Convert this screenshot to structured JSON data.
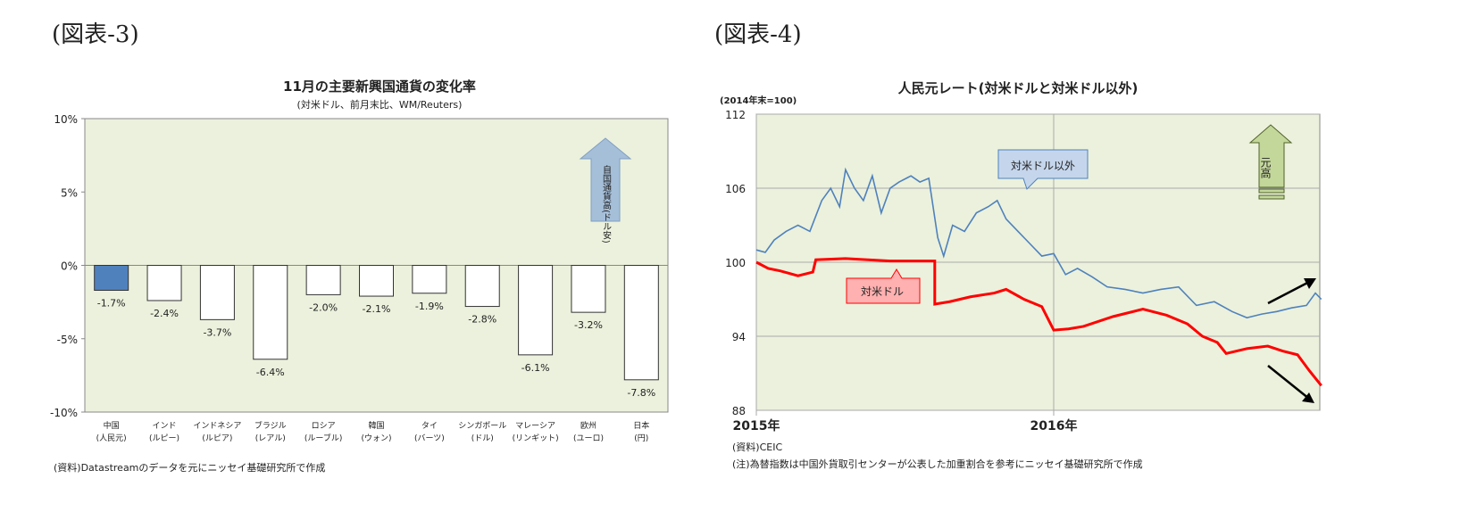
{
  "figure_labels": [
    "(図表-3)",
    "(図表-4)"
  ],
  "chart_data": [
    {
      "type": "bar",
      "title": "11月の主要新興国通貨の変化率",
      "subtitle": "(対米ドル、前月末比、WM/Reuters)",
      "categories": [
        [
          "中国",
          "(人民元)"
        ],
        [
          "インド",
          "(ルピー)"
        ],
        [
          "インドネシア",
          "(ルピア)"
        ],
        [
          "ブラジル",
          "(レアル)"
        ],
        [
          "ロシア",
          "(ルーブル)"
        ],
        [
          "韓国",
          "(ウォン)"
        ],
        [
          "タイ",
          "(バーツ)"
        ],
        [
          "シンガポール",
          "(ドル)"
        ],
        [
          "マレーシア",
          "(リンギット)"
        ],
        [
          "欧州",
          "(ユーロ)"
        ],
        [
          "日本",
          "(円)"
        ]
      ],
      "values": [
        -1.7,
        -2.4,
        -3.7,
        -6.4,
        -2.0,
        -2.1,
        -1.9,
        -2.8,
        -6.1,
        -3.2,
        -7.8
      ],
      "value_labels": [
        "-1.7%",
        "-2.4%",
        "-3.7%",
        "-6.4%",
        "-2.0%",
        "-2.1%",
        "-1.9%",
        "-2.8%",
        "-6.1%",
        "-3.2%",
        "-7.8%"
      ],
      "ylim": [
        -10,
        10
      ],
      "yticks": [
        10,
        5,
        0,
        -5,
        -10
      ],
      "ytick_labels": [
        "10%",
        "5%",
        "0%",
        "-5%",
        "-10%"
      ],
      "highlight_color": "#4f81bd",
      "bar_color": "#ffffff",
      "plot_bg": "#ebf1dc",
      "annotation": "自国通貨高(ドル安)",
      "source": "(資料)Datastreamのデータを元にニッセイ基礎研究所で作成"
    },
    {
      "type": "line",
      "title": "人民元レート(対米ドルと対米ドル以外)",
      "ylabel": "(2014年末=100)",
      "ylim": [
        88,
        112
      ],
      "yticks": [
        112,
        106,
        100,
        94,
        88
      ],
      "xlim": [
        2015.0,
        2016.9
      ],
      "xticks": [
        {
          "x": 2015.0,
          "label": "2015年"
        },
        {
          "x": 2016.0,
          "label": "2016年"
        }
      ],
      "annotation": "元高",
      "series": [
        {
          "name": "対米ドル以外",
          "color": "#4f81bd",
          "x": [
            2015.0,
            2015.03,
            2015.06,
            2015.1,
            2015.14,
            2015.18,
            2015.22,
            2015.25,
            2015.28,
            2015.3,
            2015.33,
            2015.36,
            2015.39,
            2015.42,
            2015.45,
            2015.48,
            2015.52,
            2015.55,
            2015.58,
            2015.61,
            2015.63,
            2015.66,
            2015.7,
            2015.74,
            2015.78,
            2015.81,
            2015.84,
            2015.88,
            2015.92,
            2015.96,
            2016.0,
            2016.04,
            2016.08,
            2016.13,
            2016.18,
            2016.24,
            2016.3,
            2016.36,
            2016.42,
            2016.48,
            2016.54,
            2016.6,
            2016.65,
            2016.7,
            2016.75,
            2016.8,
            2016.85,
            2016.88,
            2016.9
          ],
          "y": [
            101,
            100.8,
            101.8,
            102.5,
            103,
            102.5,
            105,
            106,
            104.5,
            107.5,
            106,
            105,
            107,
            104,
            106,
            106.5,
            107,
            106.5,
            106.8,
            102,
            100.5,
            103,
            102.5,
            104,
            104.5,
            105,
            103.5,
            102.5,
            101.5,
            100.5,
            100.7,
            99,
            99.5,
            98.8,
            98,
            97.8,
            97.5,
            97.8,
            98,
            96.5,
            96.8,
            96,
            95.5,
            95.8,
            96,
            96.3,
            96.5,
            97.5,
            97
          ]
        },
        {
          "name": "対米ドル",
          "color": "#ff0000",
          "x": [
            2015.0,
            2015.04,
            2015.08,
            2015.14,
            2015.19,
            2015.2,
            2015.3,
            2015.45,
            2015.6,
            2015.6,
            2015.65,
            2015.72,
            2015.8,
            2015.84,
            2015.9,
            2015.96,
            2016.0,
            2016.05,
            2016.1,
            2016.2,
            2016.3,
            2016.38,
            2016.45,
            2016.5,
            2016.55,
            2016.58,
            2016.65,
            2016.72,
            2016.77,
            2016.82,
            2016.86,
            2016.9
          ],
          "y": [
            100,
            99.5,
            99.3,
            98.9,
            99.2,
            100.2,
            100.3,
            100.1,
            100.1,
            96.6,
            96.8,
            97.2,
            97.5,
            97.8,
            97,
            96.4,
            94.5,
            94.6,
            94.8,
            95.6,
            96.2,
            95.7,
            95,
            94,
            93.5,
            92.6,
            93,
            93.2,
            92.8,
            92.5,
            91.2,
            90
          ]
        }
      ],
      "source": "(資料)CEIC",
      "note": "(注)為替指数は中国外貨取引センターが公表した加重割合を参考にニッセイ基礎研究所で作成"
    }
  ]
}
